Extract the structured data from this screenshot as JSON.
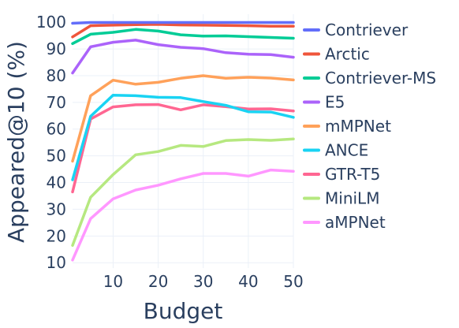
{
  "chart_data": {
    "type": "line",
    "title": "",
    "xlabel": "Budget",
    "ylabel": "Appeared@10 (%)",
    "xlim": [
      1,
      50
    ],
    "ylim": [
      8,
      103
    ],
    "x_ticks": [
      10,
      20,
      30,
      40,
      50
    ],
    "y_ticks": [
      10,
      20,
      30,
      40,
      50,
      60,
      70,
      80,
      90,
      100
    ],
    "grid": true,
    "legend_position": "right",
    "x": [
      1,
      5,
      10,
      15,
      20,
      25,
      30,
      35,
      40,
      45,
      50
    ],
    "series": [
      {
        "name": "Contriever",
        "color": "#636efa",
        "values": [
          99.6,
          99.9,
          99.9,
          99.9,
          99.9,
          99.9,
          99.9,
          99.9,
          99.9,
          99.9,
          99.9
        ]
      },
      {
        "name": "Arctic",
        "color": "#ef553b",
        "values": [
          94.5,
          98.7,
          98.9,
          99.1,
          99.2,
          99.0,
          98.9,
          98.8,
          98.7,
          98.5,
          98.5
        ]
      },
      {
        "name": "Contriever-MS",
        "color": "#00cc96",
        "values": [
          92.0,
          95.5,
          96.2,
          97.3,
          96.7,
          95.3,
          94.8,
          94.9,
          94.6,
          94.3,
          94.0
        ]
      },
      {
        "name": "E5",
        "color": "#ab63fa",
        "values": [
          81.0,
          90.8,
          92.5,
          93.3,
          91.6,
          90.6,
          90.1,
          88.6,
          88.0,
          87.9,
          86.9
        ]
      },
      {
        "name": "mMPNet",
        "color": "#ffa15a",
        "values": [
          48.0,
          72.5,
          78.3,
          76.8,
          77.5,
          79.0,
          80.0,
          79.0,
          79.4,
          79.1,
          78.4
        ]
      },
      {
        "name": "ANCE",
        "color": "#19d3f3",
        "values": [
          41.0,
          64.8,
          72.7,
          72.5,
          71.9,
          71.8,
          70.3,
          68.9,
          66.5,
          66.4,
          64.4
        ]
      },
      {
        "name": "GTR-T5",
        "color": "#ff6692",
        "values": [
          36.5,
          63.8,
          68.3,
          69.1,
          69.2,
          67.2,
          69.1,
          68.4,
          67.5,
          67.6,
          66.8
        ]
      },
      {
        "name": "MiniLM",
        "color": "#b6e880",
        "values": [
          16.5,
          34.5,
          43.0,
          50.4,
          51.6,
          53.9,
          53.5,
          55.7,
          56.1,
          55.8,
          56.3
        ]
      },
      {
        "name": "aMPNet",
        "color": "#ff97ff",
        "values": [
          11.0,
          26.5,
          33.9,
          37.2,
          39.0,
          41.4,
          43.4,
          43.4,
          42.4,
          44.7,
          44.2
        ]
      }
    ]
  }
}
